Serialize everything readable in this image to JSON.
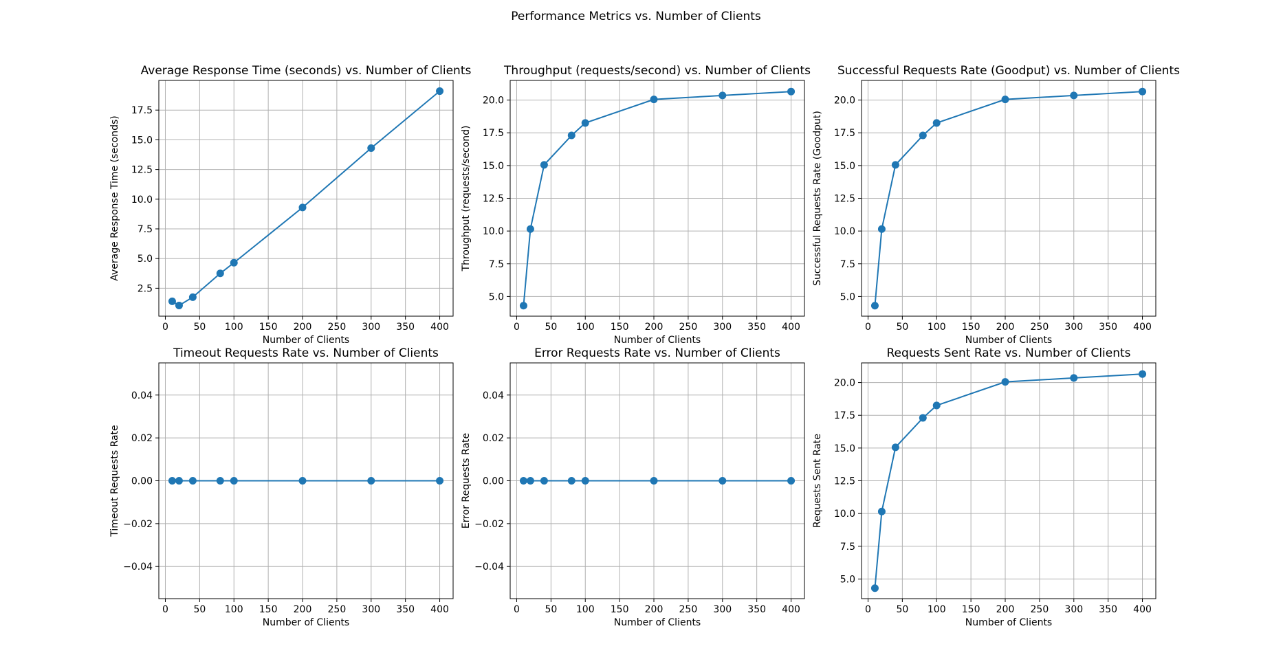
{
  "figure": {
    "title": "Performance Metrics vs. Number of Clients",
    "line_color": "#1f77b4"
  },
  "chart_data": [
    {
      "type": "line",
      "title": "Average Response Time (seconds) vs. Number of Clients",
      "xlabel": "Number of Clients",
      "ylabel": "Average Response Time (seconds)",
      "x": [
        10,
        20,
        40,
        80,
        100,
        200,
        300,
        400
      ],
      "y": [
        1.4,
        1.05,
        1.75,
        3.75,
        4.65,
        9.3,
        14.3,
        19.1
      ],
      "xlim": [
        -9.5,
        419.5
      ],
      "ylim": [
        0.15,
        20.0
      ],
      "xticks": [
        0,
        50,
        100,
        150,
        200,
        250,
        300,
        350,
        400
      ],
      "yticks": [
        2.5,
        5.0,
        7.5,
        10.0,
        12.5,
        15.0,
        17.5
      ],
      "yticklabels": [
        "2.5",
        "5.0",
        "7.5",
        "10.0",
        "12.5",
        "15.0",
        "17.5"
      ],
      "grid": true,
      "marker": "circle"
    },
    {
      "type": "line",
      "title": "Throughput (requests/second) vs. Number of Clients",
      "xlabel": "Number of Clients",
      "ylabel": "Throughput (requests/second)",
      "x": [
        10,
        20,
        40,
        80,
        100,
        200,
        300,
        400
      ],
      "y": [
        4.3,
        10.15,
        15.05,
        17.3,
        18.25,
        20.05,
        20.35,
        20.65
      ],
      "xlim": [
        -9.5,
        419.5
      ],
      "ylim": [
        3.5,
        21.5
      ],
      "xticks": [
        0,
        50,
        100,
        150,
        200,
        250,
        300,
        350,
        400
      ],
      "yticks": [
        5.0,
        7.5,
        10.0,
        12.5,
        15.0,
        17.5,
        20.0
      ],
      "yticklabels": [
        "5.0",
        "7.5",
        "10.0",
        "12.5",
        "15.0",
        "17.5",
        "20.0"
      ],
      "grid": true,
      "marker": "circle"
    },
    {
      "type": "line",
      "title": "Successful Requests Rate (Goodput) vs. Number of Clients",
      "xlabel": "Number of Clients",
      "ylabel": "Successful Requests Rate (Goodput)",
      "x": [
        10,
        20,
        40,
        80,
        100,
        200,
        300,
        400
      ],
      "y": [
        4.3,
        10.15,
        15.05,
        17.3,
        18.25,
        20.05,
        20.35,
        20.65
      ],
      "xlim": [
        -9.5,
        419.5
      ],
      "ylim": [
        3.5,
        21.5
      ],
      "xticks": [
        0,
        50,
        100,
        150,
        200,
        250,
        300,
        350,
        400
      ],
      "yticks": [
        5.0,
        7.5,
        10.0,
        12.5,
        15.0,
        17.5,
        20.0
      ],
      "yticklabels": [
        "5.0",
        "7.5",
        "10.0",
        "12.5",
        "15.0",
        "17.5",
        "20.0"
      ],
      "grid": true,
      "marker": "circle"
    },
    {
      "type": "line",
      "title": "Timeout Requests Rate vs. Number of Clients",
      "xlabel": "Number of Clients",
      "ylabel": "Timeout Requests Rate",
      "x": [
        10,
        20,
        40,
        80,
        100,
        200,
        300,
        400
      ],
      "y": [
        0,
        0,
        0,
        0,
        0,
        0,
        0,
        0
      ],
      "xlim": [
        -9.5,
        419.5
      ],
      "ylim": [
        -0.055,
        0.055
      ],
      "xticks": [
        0,
        50,
        100,
        150,
        200,
        250,
        300,
        350,
        400
      ],
      "yticks": [
        -0.04,
        -0.02,
        0.0,
        0.02,
        0.04
      ],
      "yticklabels": [
        "−0.04",
        "−0.02",
        "0.00",
        "0.02",
        "0.04"
      ],
      "grid": true,
      "marker": "circle"
    },
    {
      "type": "line",
      "title": "Error Requests Rate vs. Number of Clients",
      "xlabel": "Number of Clients",
      "ylabel": "Error Requests Rate",
      "x": [
        10,
        20,
        40,
        80,
        100,
        200,
        300,
        400
      ],
      "y": [
        0,
        0,
        0,
        0,
        0,
        0,
        0,
        0
      ],
      "xlim": [
        -9.5,
        419.5
      ],
      "ylim": [
        -0.055,
        0.055
      ],
      "xticks": [
        0,
        50,
        100,
        150,
        200,
        250,
        300,
        350,
        400
      ],
      "yticks": [
        -0.04,
        -0.02,
        0.0,
        0.02,
        0.04
      ],
      "yticklabels": [
        "−0.04",
        "−0.02",
        "0.00",
        "0.02",
        "0.04"
      ],
      "grid": true,
      "marker": "circle"
    },
    {
      "type": "line",
      "title": "Requests Sent Rate vs. Number of Clients",
      "xlabel": "Number of Clients",
      "ylabel": "Requests Sent Rate",
      "x": [
        10,
        20,
        40,
        80,
        100,
        200,
        300,
        400
      ],
      "y": [
        4.3,
        10.15,
        15.05,
        17.3,
        18.25,
        20.05,
        20.35,
        20.65
      ],
      "xlim": [
        -9.5,
        419.5
      ],
      "ylim": [
        3.5,
        21.5
      ],
      "xticks": [
        0,
        50,
        100,
        150,
        200,
        250,
        300,
        350,
        400
      ],
      "yticks": [
        5.0,
        7.5,
        10.0,
        12.5,
        15.0,
        17.5,
        20.0
      ],
      "yticklabels": [
        "5.0",
        "7.5",
        "10.0",
        "12.5",
        "15.0",
        "17.5",
        "20.0"
      ],
      "grid": true,
      "marker": "circle"
    }
  ]
}
